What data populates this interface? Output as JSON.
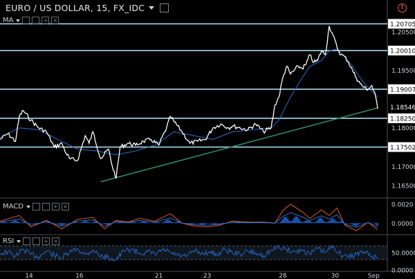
{
  "header": {
    "symbol": "EURO / US DOLLAR",
    "interval": "15",
    "exchange": "FX_IDC",
    "title": "EURO / US DOLLAR, 15, FX_IDC"
  },
  "indicators": {
    "main_overlay": "MA",
    "macd_label": "MACD",
    "rsi_label": "RSI"
  },
  "colors": {
    "background": "#000000",
    "price_line": "#ffffff",
    "ma_line": "#2f6fd0",
    "hline": "#a8d8ea",
    "trendline": "#2e8b6e",
    "axis_text": "#d0d4d8",
    "macd_hist": "#1f66d6",
    "macd_signal": "#e05a2a",
    "rsi_line": "#2a67c9",
    "alert": "#e0623b"
  },
  "chart_data": {
    "type": "line",
    "x_tick_labels": [
      "14",
      "16",
      "21",
      "23",
      "28",
      "30",
      "Sep"
    ],
    "price_axis": {
      "ticks": [
        "1.20500",
        "1.20000",
        "1.19500",
        "1.19000",
        "1.18500",
        "1.18000",
        "1.17500",
        "1.17000",
        "1.16500"
      ],
      "range": [
        1.1625,
        1.21
      ]
    },
    "horizontal_levels": [
      {
        "value": 1.20705,
        "label": "1.20705"
      },
      {
        "value": 1.2001,
        "label": "1.20010"
      },
      {
        "value": 1.19007,
        "label": "1.19007"
      },
      {
        "value": 1.1825,
        "label": "1.18250"
      },
      {
        "value": 1.17502,
        "label": "1.17502"
      }
    ],
    "last_price": {
      "value": 1.18546,
      "label": "1.18546"
    },
    "trendline": {
      "from": {
        "x": 0.26,
        "y": 1.166
      },
      "to": {
        "x": 0.975,
        "y": 1.1852
      }
    },
    "price_series": {
      "name": "EUR/USD",
      "x": [
        0.0,
        0.02,
        0.04,
        0.05,
        0.06,
        0.08,
        0.1,
        0.12,
        0.14,
        0.16,
        0.17,
        0.18,
        0.2,
        0.22,
        0.23,
        0.24,
        0.26,
        0.28,
        0.29,
        0.3,
        0.31,
        0.33,
        0.35,
        0.37,
        0.39,
        0.41,
        0.43,
        0.44,
        0.45,
        0.47,
        0.49,
        0.51,
        0.53,
        0.55,
        0.57,
        0.59,
        0.6,
        0.62,
        0.64,
        0.66,
        0.68,
        0.7,
        0.71,
        0.72,
        0.73,
        0.74,
        0.75,
        0.76,
        0.77,
        0.78,
        0.79,
        0.8,
        0.81,
        0.82,
        0.83,
        0.84,
        0.85,
        0.86,
        0.87,
        0.88,
        0.89,
        0.9,
        0.91,
        0.92,
        0.93,
        0.94,
        0.95,
        0.96,
        0.97,
        0.975
      ],
      "y": [
        1.177,
        1.1785,
        1.1765,
        1.183,
        1.1845,
        1.182,
        1.18,
        1.179,
        1.175,
        1.176,
        1.1735,
        1.172,
        1.1715,
        1.178,
        1.176,
        1.179,
        1.172,
        1.1745,
        1.17,
        1.167,
        1.175,
        1.176,
        1.1755,
        1.1765,
        1.177,
        1.1755,
        1.18,
        1.183,
        1.1815,
        1.179,
        1.176,
        1.1765,
        1.177,
        1.18,
        1.181,
        1.18,
        1.1805,
        1.18,
        1.1795,
        1.181,
        1.179,
        1.18,
        1.186,
        1.188,
        1.193,
        1.196,
        1.194,
        1.195,
        1.196,
        1.1955,
        1.1965,
        1.199,
        1.197,
        1.1975,
        1.2,
        1.199,
        1.2065,
        1.204,
        1.201,
        1.199,
        1.1985,
        1.197,
        1.195,
        1.193,
        1.1915,
        1.1905,
        1.19,
        1.191,
        1.188,
        1.185
      ]
    },
    "ma_series": {
      "x": [
        0.0,
        0.05,
        0.1,
        0.15,
        0.2,
        0.25,
        0.3,
        0.35,
        0.4,
        0.45,
        0.5,
        0.55,
        0.6,
        0.65,
        0.7,
        0.72,
        0.75,
        0.78,
        0.8,
        0.83,
        0.85,
        0.87,
        0.89,
        0.91,
        0.93,
        0.95,
        0.975
      ],
      "y": [
        1.1775,
        1.18,
        1.1795,
        1.177,
        1.1745,
        1.174,
        1.173,
        1.174,
        1.1755,
        1.179,
        1.178,
        1.177,
        1.179,
        1.1795,
        1.18,
        1.182,
        1.188,
        1.193,
        1.196,
        1.1975,
        1.2,
        1.2005,
        1.1985,
        1.196,
        1.193,
        1.1905,
        1.188
      ]
    },
    "macd_axis": {
      "ticks": [
        "0.0020",
        "0.0000"
      ]
    },
    "macd_signal": {
      "x": [
        0.0,
        0.05,
        0.08,
        0.12,
        0.16,
        0.2,
        0.24,
        0.27,
        0.3,
        0.33,
        0.36,
        0.4,
        0.44,
        0.47,
        0.5,
        0.53,
        0.56,
        0.6,
        0.64,
        0.68,
        0.71,
        0.73,
        0.75,
        0.78,
        0.8,
        0.83,
        0.85,
        0.87,
        0.89,
        0.92,
        0.95,
        0.975
      ],
      "y": [
        0.0002,
        0.0008,
        -0.0004,
        0.0003,
        -0.0006,
        0.0004,
        0.0006,
        -0.0006,
        0.0003,
        0.0001,
        0.0005,
        0.0002,
        0.001,
        0.0,
        -0.0003,
        -0.0004,
        -0.0003,
        0.0002,
        0.0001,
        0.0001,
        0.0,
        0.0013,
        0.002,
        0.0012,
        0.0005,
        0.0014,
        0.0008,
        0.0016,
        -0.0002,
        -0.0008,
        0.0001,
        -0.0007
      ]
    },
    "rsi_axis": {
      "ticks": [
        "50.0000",
        "0.0000"
      ]
    },
    "rsi_series": {
      "x": [
        0.0,
        0.02,
        0.04,
        0.06,
        0.08,
        0.1,
        0.12,
        0.14,
        0.16,
        0.18,
        0.2,
        0.22,
        0.24,
        0.26,
        0.28,
        0.3,
        0.32,
        0.34,
        0.36,
        0.38,
        0.4,
        0.42,
        0.44,
        0.46,
        0.48,
        0.5,
        0.52,
        0.54,
        0.56,
        0.58,
        0.6,
        0.62,
        0.64,
        0.66,
        0.68,
        0.7,
        0.72,
        0.74,
        0.76,
        0.78,
        0.8,
        0.82,
        0.84,
        0.86,
        0.88,
        0.9,
        0.92,
        0.94,
        0.96,
        0.975
      ],
      "y": [
        48,
        52,
        40,
        60,
        45,
        38,
        55,
        42,
        35,
        50,
        62,
        44,
        58,
        40,
        36,
        30,
        55,
        60,
        48,
        52,
        45,
        58,
        50,
        42,
        38,
        55,
        48,
        52,
        44,
        60,
        50,
        46,
        54,
        48,
        42,
        56,
        66,
        60,
        52,
        58,
        46,
        62,
        50,
        70,
        44,
        38,
        46,
        52,
        40,
        35
      ]
    }
  }
}
